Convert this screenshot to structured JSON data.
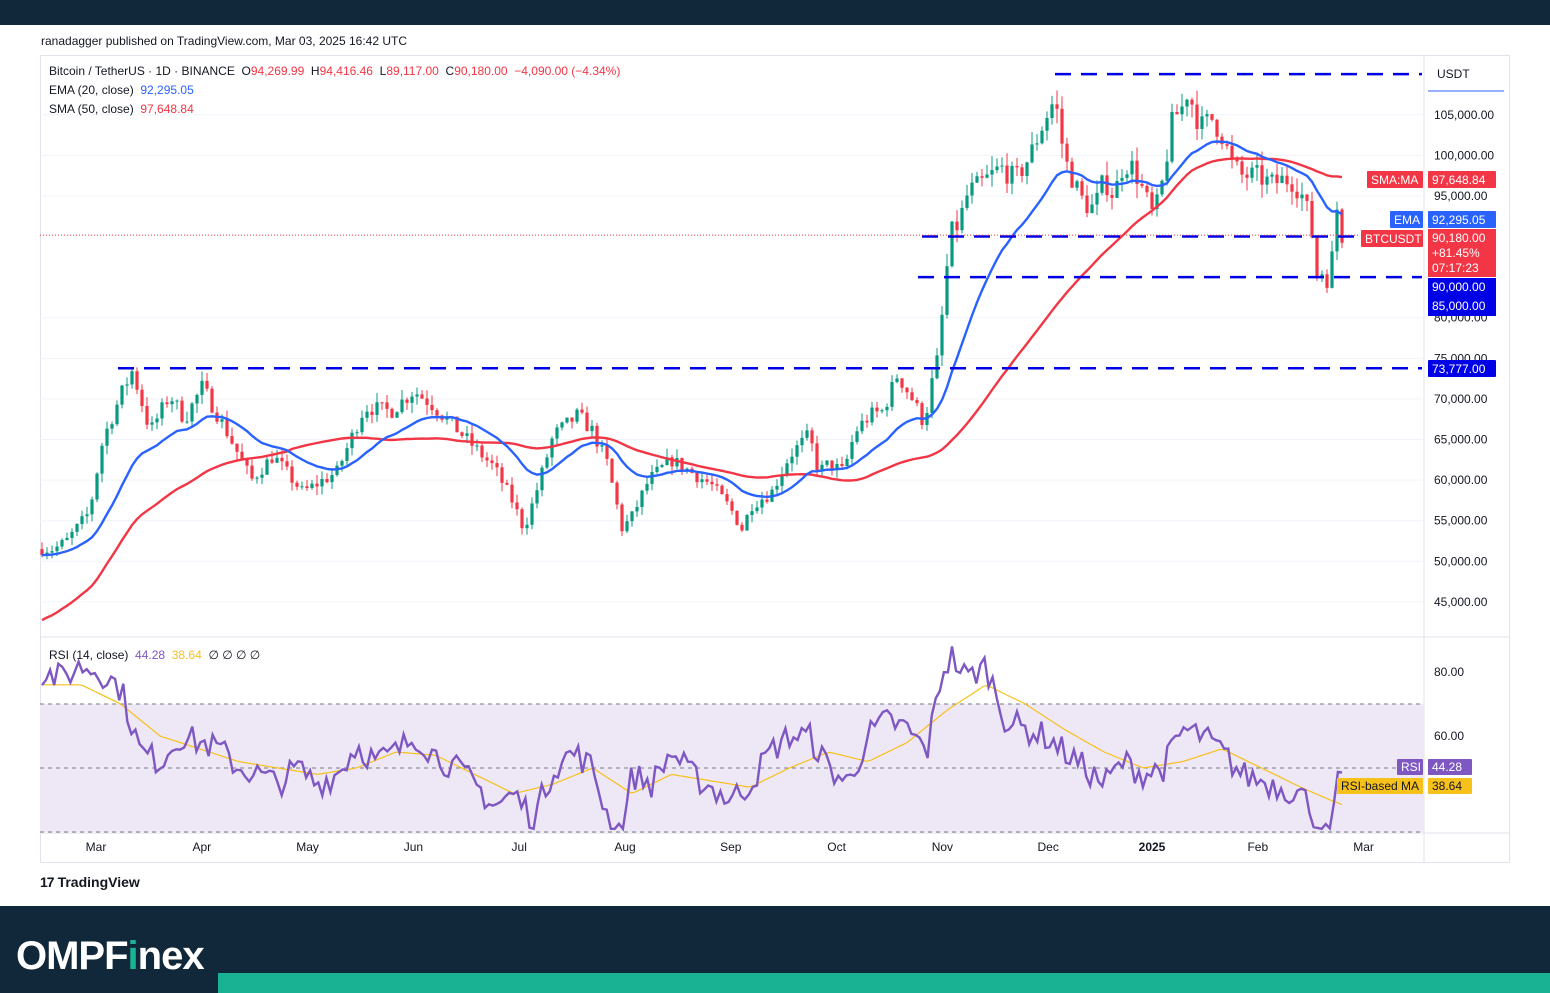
{
  "header": {
    "publisher": "ranadagger published on TradingView.com, Mar 03, 2025 16:42 UTC"
  },
  "legend": {
    "symbol": "Bitcoin / TetherUS · 1D · BINANCE",
    "o_label": "O",
    "o": "94,269.99",
    "h_label": "H",
    "h": "94,416.46",
    "l_label": "L",
    "l": "89,117.00",
    "c_label": "C",
    "c": "90,180.00",
    "change": "−4,090.00 (−4.34%)",
    "ema_label": "EMA (20, close)",
    "ema_value": "92,295.05",
    "sma_label": "SMA (50, close)",
    "sma_value": "97,648.84",
    "rsi_label": "RSI (14, close)",
    "rsi_value": "44.28",
    "rsi_ma_value": "38.64",
    "rsi_extra": "∅ ∅ ∅ ∅"
  },
  "price_axis": {
    "currency": "USDT",
    "ticks": [
      "105,000.00",
      "100,000.00",
      "95,000.00",
      "80,000.00",
      "75,000.00",
      "70,000.00",
      "65,000.00",
      "60,000.00",
      "55,000.00",
      "50,000.00",
      "45,000.00"
    ],
    "tick_values": [
      105000,
      100000,
      95000,
      80000,
      75000,
      70000,
      65000,
      60000,
      55000,
      50000,
      45000
    ]
  },
  "badges": {
    "sma": {
      "tag": "SMA:MA",
      "value": "97,648.84"
    },
    "ema": {
      "tag": "EMA",
      "value": "92,295.05"
    },
    "last": {
      "tag": "BTCUSDT",
      "value": "90,180.00",
      "change": "+81.45%",
      "countdown": "07:17:23"
    },
    "level_90k": "90,000.00",
    "level_85k": "85,000.00",
    "level_73k": "73,777.00"
  },
  "rsi_axis": {
    "ticks": [
      "80.00",
      "60.00"
    ],
    "tick_values": [
      80,
      60
    ]
  },
  "rsi_badges": {
    "rsi": {
      "tag": "RSI",
      "value": "44.28"
    },
    "ma": {
      "tag": "RSI-based MA",
      "value": "38.64"
    }
  },
  "time_axis": [
    "Mar",
    "Apr",
    "May",
    "Jun",
    "Jul",
    "Aug",
    "Sep",
    "Oct",
    "Nov",
    "Dec",
    "2025",
    "Feb",
    "Mar"
  ],
  "colors": {
    "up": "#089981",
    "down": "#f23645",
    "ema": "#2962ff",
    "sma": "#f23645",
    "level": "#0000e6",
    "rsi": "#7e57c2",
    "rsi_ma": "#f7c11b",
    "rsi_band": "#ede7f6"
  },
  "chart_data": {
    "type": "candlestick",
    "title": "Bitcoin / TetherUS · 1D · BINANCE",
    "ylim": [
      40800,
      111500
    ],
    "horizontal_levels": [
      90000,
      85000,
      73777
    ],
    "upper_level_dashed": 110000,
    "series": [
      {
        "name": "EMA (20, close)",
        "last": 92295.05
      },
      {
        "name": "SMA (50, close)",
        "last": 97648.84
      }
    ],
    "price_path": [
      [
        0,
        51500
      ],
      [
        12,
        51500
      ],
      [
        25,
        52500
      ],
      [
        48,
        56000
      ],
      [
        62,
        65000
      ],
      [
        82,
        71000
      ],
      [
        92,
        73500
      ],
      [
        110,
        66000
      ],
      [
        130,
        70500
      ],
      [
        145,
        67500
      ],
      [
        163,
        71500
      ],
      [
        190,
        65500
      ],
      [
        213,
        60000
      ],
      [
        235,
        63000
      ],
      [
        265,
        58500
      ],
      [
        300,
        61000
      ],
      [
        328,
        69000
      ],
      [
        355,
        68500
      ],
      [
        378,
        71000
      ],
      [
        395,
        69500
      ],
      [
        420,
        66500
      ],
      [
        440,
        64000
      ],
      [
        460,
        61500
      ],
      [
        478,
        57500
      ],
      [
        490,
        54000
      ],
      [
        500,
        57500
      ],
      [
        520,
        65500
      ],
      [
        545,
        68000
      ],
      [
        560,
        66000
      ],
      [
        575,
        62000
      ],
      [
        590,
        54000
      ],
      [
        600,
        55500
      ],
      [
        617,
        60000
      ],
      [
        640,
        62500
      ],
      [
        660,
        61000
      ],
      [
        680,
        59500
      ],
      [
        700,
        56500
      ],
      [
        712,
        54000
      ],
      [
        722,
        57000
      ],
      [
        742,
        58500
      ],
      [
        760,
        63000
      ],
      [
        780,
        65500
      ],
      [
        790,
        61000
      ],
      [
        800,
        62000
      ],
      [
        815,
        61000
      ],
      [
        827,
        66000
      ],
      [
        842,
        68000
      ],
      [
        855,
        68500
      ],
      [
        870,
        73000
      ],
      [
        885,
        70000
      ],
      [
        897,
        67000
      ],
      [
        905,
        72000
      ],
      [
        912,
        75500
      ],
      [
        918,
        84000
      ],
      [
        925,
        90500
      ],
      [
        932,
        91500
      ],
      [
        942,
        95500
      ],
      [
        955,
        96500
      ],
      [
        965,
        97500
      ],
      [
        975,
        98500
      ],
      [
        990,
        97000
      ],
      [
        1005,
        100000
      ],
      [
        1020,
        104500
      ],
      [
        1030,
        107000
      ],
      [
        1040,
        99500
      ],
      [
        1050,
        96500
      ],
      [
        1060,
        94000
      ],
      [
        1070,
        93500
      ],
      [
        1080,
        97000
      ],
      [
        1090,
        95000
      ],
      [
        1100,
        99000
      ],
      [
        1110,
        98500
      ],
      [
        1120,
        95500
      ],
      [
        1130,
        92500
      ],
      [
        1137,
        95000
      ],
      [
        1150,
        104500
      ],
      [
        1160,
        106000
      ],
      [
        1165,
        108000
      ],
      [
        1178,
        103500
      ],
      [
        1190,
        104500
      ],
      [
        1200,
        102500
      ],
      [
        1210,
        99000
      ],
      [
        1220,
        97500
      ],
      [
        1235,
        97500
      ],
      [
        1250,
        96500
      ],
      [
        1262,
        97000
      ],
      [
        1270,
        97000
      ],
      [
        1280,
        95500
      ],
      [
        1290,
        92000
      ],
      [
        1296,
        85000
      ],
      [
        1300,
        86500
      ],
      [
        1305,
        84000
      ],
      [
        1313,
        88000
      ],
      [
        1318,
        95000
      ],
      [
        1322,
        90180
      ]
    ],
    "ema_last": 92295.05,
    "sma_last": 97648.84,
    "rsi": {
      "ylim": [
        30,
        90
      ],
      "bands": [
        70,
        50,
        30
      ],
      "last_rsi": 44.28,
      "last_ma": 38.64,
      "path": [
        [
          0,
          80
        ],
        [
          20,
          78
        ],
        [
          40,
          82
        ],
        [
          60,
          80
        ],
        [
          80,
          75
        ],
        [
          100,
          55
        ],
        [
          120,
          52
        ],
        [
          140,
          60
        ],
        [
          160,
          58
        ],
        [
          180,
          56
        ],
        [
          200,
          50
        ],
        [
          220,
          48
        ],
        [
          240,
          45
        ],
        [
          260,
          50
        ],
        [
          280,
          45
        ],
        [
          300,
          48
        ],
        [
          320,
          57
        ],
        [
          340,
          52
        ],
        [
          360,
          55
        ],
        [
          380,
          60
        ],
        [
          400,
          54
        ],
        [
          420,
          50
        ],
        [
          440,
          45
        ],
        [
          460,
          38
        ],
        [
          480,
          42
        ],
        [
          500,
          34
        ],
        [
          520,
          50
        ],
        [
          540,
          55
        ],
        [
          560,
          50
        ],
        [
          575,
          35
        ],
        [
          590,
          30
        ],
        [
          600,
          48
        ],
        [
          620,
          45
        ],
        [
          640,
          55
        ],
        [
          660,
          48
        ],
        [
          680,
          44
        ],
        [
          700,
          40
        ],
        [
          720,
          45
        ],
        [
          740,
          55
        ],
        [
          760,
          60
        ],
        [
          780,
          60
        ],
        [
          800,
          50
        ],
        [
          820,
          45
        ],
        [
          840,
          60
        ],
        [
          860,
          65
        ],
        [
          880,
          62
        ],
        [
          900,
          55
        ],
        [
          915,
          80
        ],
        [
          925,
          85
        ],
        [
          940,
          78
        ],
        [
          960,
          82
        ],
        [
          980,
          65
        ],
        [
          1000,
          62
        ],
        [
          1020,
          60
        ],
        [
          1040,
          55
        ],
        [
          1060,
          50
        ],
        [
          1080,
          45
        ],
        [
          1100,
          52
        ],
        [
          1120,
          48
        ],
        [
          1140,
          50
        ],
        [
          1160,
          62
        ],
        [
          1180,
          60
        ],
        [
          1200,
          55
        ],
        [
          1220,
          48
        ],
        [
          1240,
          46
        ],
        [
          1260,
          44
        ],
        [
          1280,
          42
        ],
        [
          1290,
          38
        ],
        [
          1300,
          30
        ],
        [
          1310,
          28
        ],
        [
          1316,
          45
        ],
        [
          1322,
          44.28
        ]
      ],
      "ma_path": [
        [
          0,
          76
        ],
        [
          40,
          76
        ],
        [
          80,
          70
        ],
        [
          120,
          60
        ],
        [
          160,
          56
        ],
        [
          200,
          52
        ],
        [
          240,
          50
        ],
        [
          280,
          48
        ],
        [
          320,
          50
        ],
        [
          360,
          55
        ],
        [
          400,
          54
        ],
        [
          440,
          48
        ],
        [
          480,
          42
        ],
        [
          520,
          45
        ],
        [
          560,
          50
        ],
        [
          600,
          42
        ],
        [
          640,
          48
        ],
        [
          680,
          46
        ],
        [
          720,
          44
        ],
        [
          760,
          50
        ],
        [
          800,
          55
        ],
        [
          840,
          52
        ],
        [
          880,
          58
        ],
        [
          920,
          68
        ],
        [
          960,
          76
        ],
        [
          1000,
          70
        ],
        [
          1040,
          62
        ],
        [
          1080,
          55
        ],
        [
          1120,
          50
        ],
        [
          1160,
          52
        ],
        [
          1200,
          56
        ],
        [
          1240,
          50
        ],
        [
          1280,
          44
        ],
        [
          1310,
          40
        ],
        [
          1322,
          38.64
        ]
      ]
    }
  }
}
